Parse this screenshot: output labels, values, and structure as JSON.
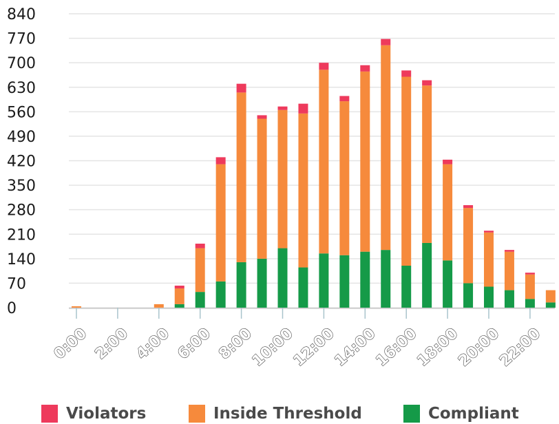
{
  "chart_data": {
    "type": "bar",
    "stacked": true,
    "title": "",
    "xlabel": "",
    "ylabel": "",
    "ylim": [
      0,
      840
    ],
    "y_ticks": [
      "0",
      "70",
      "140",
      "210",
      "280",
      "350",
      "420",
      "490",
      "560",
      "630",
      "700",
      "770",
      "840"
    ],
    "x_tick_labels": [
      "0:00",
      "2:00",
      "4:00",
      "6:00",
      "8:00",
      "10:00",
      "12:00",
      "14:00",
      "16:00",
      "18:00",
      "20:00",
      "22:00"
    ],
    "categories": [
      "0",
      "1",
      "2",
      "3",
      "4",
      "5",
      "6",
      "7",
      "8",
      "9",
      "10",
      "11",
      "12",
      "13",
      "14",
      "15",
      "16",
      "17",
      "18",
      "19",
      "20",
      "21",
      "22",
      "23"
    ],
    "grid": true,
    "legend_position": "bottom",
    "series": [
      {
        "name": "Compliant",
        "color": "#159a48",
        "values": [
          0,
          0,
          0,
          0,
          0,
          10,
          45,
          75,
          130,
          140,
          170,
          115,
          155,
          150,
          160,
          165,
          120,
          185,
          135,
          70,
          60,
          50,
          25,
          15
        ]
      },
      {
        "name": "Inside Threshold",
        "color": "#f68a3c",
        "values": [
          4,
          0,
          0,
          0,
          10,
          45,
          125,
          335,
          485,
          400,
          395,
          440,
          525,
          440,
          515,
          585,
          540,
          450,
          275,
          215,
          155,
          110,
          70,
          35
        ]
      },
      {
        "name": "Violators",
        "color": "#ee3a5c",
        "values": [
          0,
          0,
          0,
          0,
          0,
          8,
          13,
          20,
          25,
          10,
          10,
          28,
          20,
          15,
          18,
          18,
          18,
          15,
          13,
          8,
          5,
          5,
          5,
          0
        ]
      }
    ]
  },
  "legend": {
    "items": [
      {
        "label": "Violators",
        "color": "#ee3a5c"
      },
      {
        "label": "Inside Threshold",
        "color": "#f68a3c"
      },
      {
        "label": "Compliant",
        "color": "#159a48"
      }
    ]
  }
}
